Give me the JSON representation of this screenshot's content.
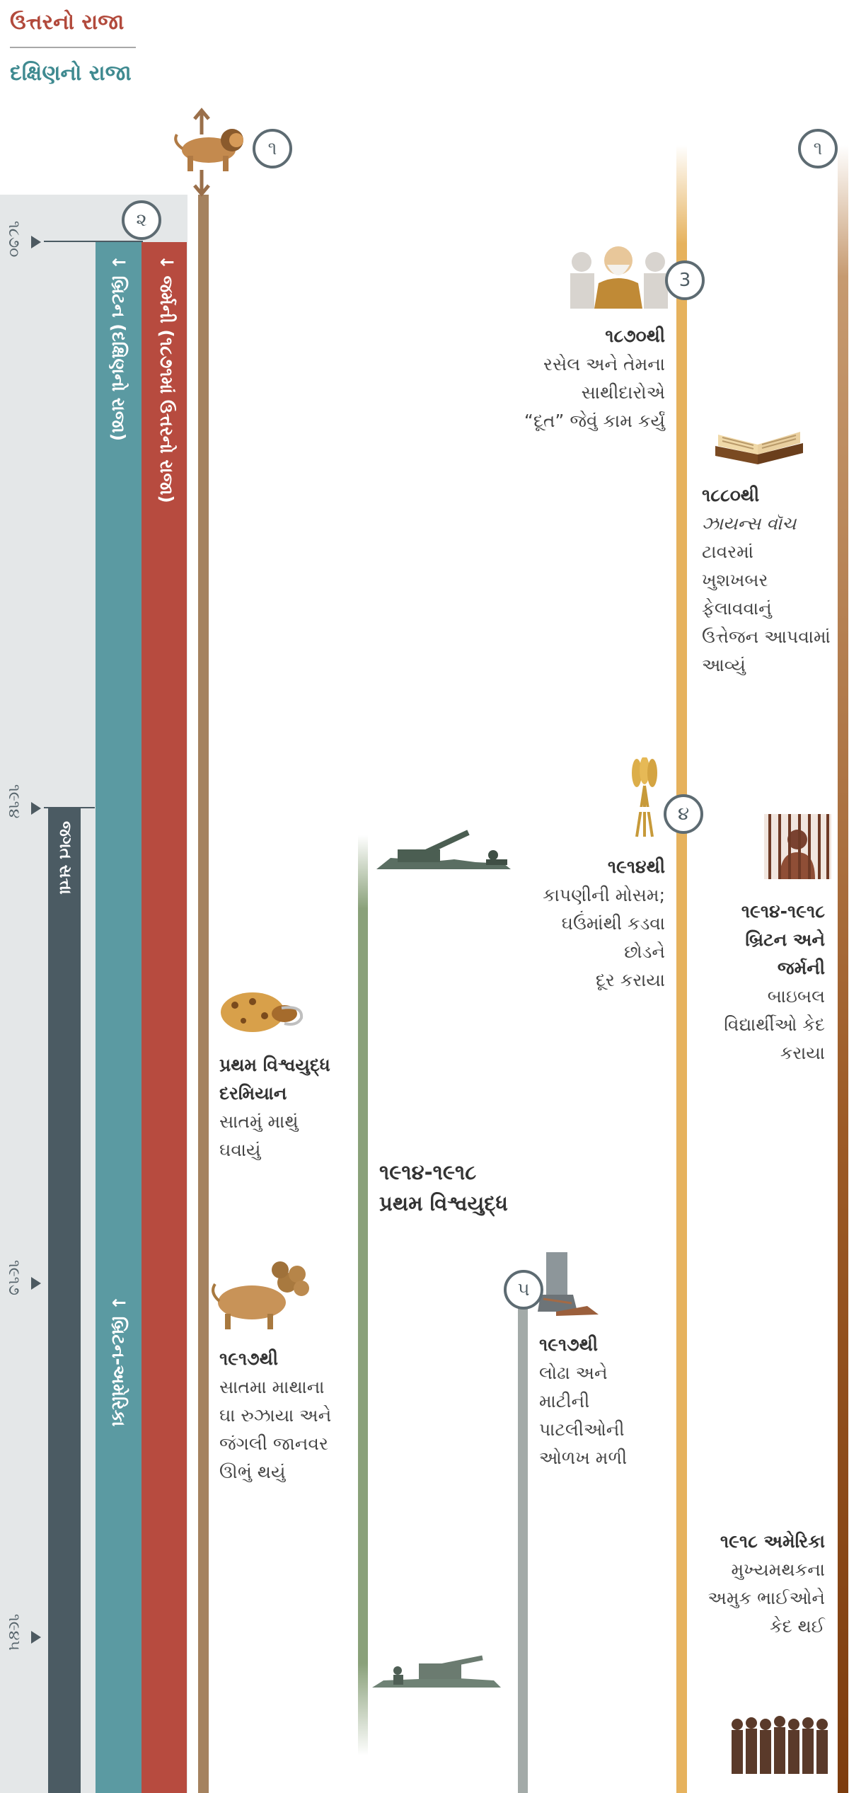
{
  "legend": {
    "north": "ઉત્તરનો રાજા",
    "south": "દક્ષિણનો રાજા"
  },
  "years": [
    "૧૮૭૦",
    "૧૯૧૪",
    "૧૯૧૭",
    "૧૯૪૫"
  ],
  "bars": {
    "germany": "↓ જર્મની (૧૮૭૧માં ઉત્તરનો રાજા)",
    "britain": "↓ બ્રિટન (દક્ષિણનો રાજા)",
    "world_power": "જગત સત્તા",
    "anglo_american": "↓ બ્રિટન-અમેરિકા"
  },
  "markers": {
    "one": "૧",
    "two": "૨",
    "three": "3",
    "four": "૪",
    "five": "૫"
  },
  "events": {
    "russell": {
      "year": "૧૮૭૦થી",
      "lines": [
        "રસેલ અને તેમના",
        "સાથીદારોએ",
        "“દૂત” જેવું કામ કર્યું"
      ]
    },
    "zions": {
      "year": "૧૮૮૦થી",
      "italic": "ઝાયન્સ વૉચ",
      "lines": [
        "ટાવરમાં",
        "ખુશખબર",
        "ફેલાવવાનું",
        "ઉત્તેજન આપવામાં",
        "આવ્યું"
      ]
    },
    "harvest": {
      "year": "૧૯૧૪થી",
      "lines": [
        "કાપણીની મોસમ;",
        "ઘઉંમાંથી કડવા",
        "છોડને",
        "દૂર કરાયા"
      ]
    },
    "jailed": {
      "title": [
        "૧૯૧૪-૧૯૧૮",
        "બ્રિટન અને",
        "જર્મની"
      ],
      "lines": [
        "બાઇબલ",
        "વિદ્યાર્થીઓ કેદ",
        "કરાયા"
      ]
    },
    "wounded": {
      "title": [
        "પ્રથમ વિશ્વયુદ્ધ",
        "દરમિયાન"
      ],
      "lines": [
        "સાતમું માથું",
        "ઘવાયું"
      ]
    },
    "ww1": {
      "lines": [
        "૧૯૧૪-૧૯૧૮",
        "પ્રથમ વિશ્વયુદ્ધ"
      ]
    },
    "healed": {
      "year": "૧૯૧૭થી",
      "lines": [
        "સાતમા માથાના",
        "ઘા રુઝાયા અને",
        "જંગલી જાનવર",
        "ઊભું થયું"
      ]
    },
    "iron_clay": {
      "year": "૧૯૧૭થી",
      "lines": [
        "લોઢા અને",
        "માટીની",
        "પાટલીઓની",
        "ઓળખ મળી"
      ]
    },
    "america": {
      "year": "૧૯૧૮ અમેરિકા",
      "lines": [
        "મુખ્યમથકના",
        "અમુક ભાઈઓને",
        "કેદ થઈ"
      ]
    }
  },
  "icons": [
    "lion-beast-icon",
    "russell-group-icon",
    "open-bible-icon",
    "wheat-bundle-icon",
    "prisoner-icon",
    "wounded-leopard-icon",
    "artillery-icon",
    "seven-head-beast-icon",
    "iron-clay-feet-icon",
    "soldiers-icon",
    "prisoners-group-icon"
  ],
  "colors": {
    "north": "#b74b3f",
    "south": "#5b9aa2",
    "gold": "#e6b25d",
    "green": "#8aa17a",
    "rust": "#7d3c0e"
  }
}
